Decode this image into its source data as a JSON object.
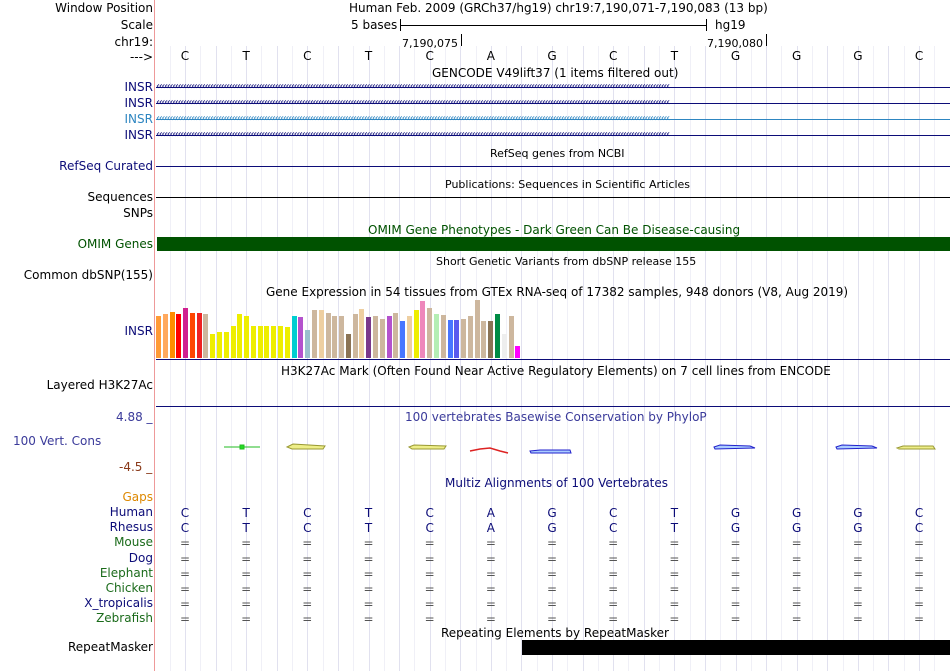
{
  "colors": {
    "gridline": "#e1e1ef",
    "divider": "#ee9999",
    "navy": "#0c0c78",
    "teal": "#2e86c1",
    "omim": "#005200",
    "gap": "#dd8800",
    "mammal": "#0c0c78",
    "nonmammal": "#1b6b1b",
    "phylop_top": "#3a3a9a",
    "phylop_bottom": "#8a3a1a",
    "repeat": "#000000"
  },
  "ruler": {
    "row_labels": [
      "Window Position",
      "Scale",
      "chr19:",
      "--->"
    ],
    "position_text": "Human Feb. 2009 (GRCh37/hg19)   chr19:7,190,071-7,190,083 (13 bp)",
    "scale_text": "5 bases",
    "assembly": "hg19",
    "tick_left": "7,190,075",
    "tick_right": "7,190,080"
  },
  "bases": [
    "C",
    "T",
    "C",
    "T",
    "C",
    "A",
    "G",
    "C",
    "T",
    "G",
    "G",
    "G",
    "C"
  ],
  "gencode": {
    "title": "GENCODE V49lift37 (1 items filtered out)",
    "items": [
      {
        "name": "INSR",
        "color": "#0c0c78"
      },
      {
        "name": "INSR",
        "color": "#0c0c78"
      },
      {
        "name": "INSR",
        "color": "#2e86c1"
      },
      {
        "name": "INSR",
        "color": "#0c0c78"
      }
    ]
  },
  "refseq": {
    "title": "RefSeq genes from NCBI",
    "label": "RefSeq Curated"
  },
  "pubs": {
    "title": "Publications: Sequences in Scientific Articles",
    "label": "Sequences",
    "label2": "SNPs"
  },
  "omim": {
    "title": "OMIM Gene Phenotypes - Dark Green Can Be Disease-causing",
    "label": "OMIM Genes"
  },
  "dbsnp": {
    "title": "Short Genetic Variants from dbSNP release 155",
    "label": "Common dbSNP(155)"
  },
  "gtex": {
    "title": "Gene Expression in 54 tissues from GTEx RNA-seq of 17382 samples, 948 donors (V8, Aug 2019)",
    "label": "INSR",
    "bars": [
      {
        "v": 0.72,
        "c": "#ff9a36"
      },
      {
        "v": 0.76,
        "c": "#ffa95e"
      },
      {
        "v": 0.8,
        "c": "#ff8c00"
      },
      {
        "v": 0.76,
        "c": "#ff0000"
      },
      {
        "v": 0.86,
        "c": "#d02090"
      },
      {
        "v": 0.78,
        "c": "#ff4500"
      },
      {
        "v": 0.78,
        "c": "#ee2222"
      },
      {
        "v": 0.76,
        "c": "#cdb79e"
      },
      {
        "v": 0.42,
        "c": "#eeee00"
      },
      {
        "v": 0.44,
        "c": "#eeee00"
      },
      {
        "v": 0.44,
        "c": "#eeee00"
      },
      {
        "v": 0.56,
        "c": "#eeee00"
      },
      {
        "v": 0.76,
        "c": "#eeee00"
      },
      {
        "v": 0.72,
        "c": "#eeee00"
      },
      {
        "v": 0.56,
        "c": "#eeee00"
      },
      {
        "v": 0.56,
        "c": "#eeee00"
      },
      {
        "v": 0.56,
        "c": "#eeee00"
      },
      {
        "v": 0.56,
        "c": "#eeee00"
      },
      {
        "v": 0.56,
        "c": "#eeee00"
      },
      {
        "v": 0.54,
        "c": "#eeee00"
      },
      {
        "v": 0.72,
        "c": "#00ced1"
      },
      {
        "v": 0.7,
        "c": "#b452cd"
      },
      {
        "v": 0.48,
        "c": "#9ac0cd"
      },
      {
        "v": 0.82,
        "c": "#cdb79e"
      },
      {
        "v": 0.82,
        "c": "#eecfa1"
      },
      {
        "v": 0.78,
        "c": "#cdb79e"
      },
      {
        "v": 0.72,
        "c": "#cdb79e"
      },
      {
        "v": 0.72,
        "c": "#cdb79e"
      },
      {
        "v": 0.42,
        "c": "#8b7355"
      },
      {
        "v": 0.76,
        "c": "#cdb79e"
      },
      {
        "v": 0.84,
        "c": "#eecfa1"
      },
      {
        "v": 0.7,
        "c": "#7a378b"
      },
      {
        "v": 0.72,
        "c": "#cdb79e"
      },
      {
        "v": 0.68,
        "c": "#cdb79e"
      },
      {
        "v": 0.72,
        "c": "#b452cd"
      },
      {
        "v": 0.78,
        "c": "#cdb79e"
      },
      {
        "v": 0.64,
        "c": "#4876ff"
      },
      {
        "v": 0.72,
        "c": "#eecfa1"
      },
      {
        "v": 0.82,
        "c": "#eeee00"
      },
      {
        "v": 0.98,
        "c": "#ee88bb"
      },
      {
        "v": 0.86,
        "c": "#cdb79e"
      },
      {
        "v": 0.76,
        "c": "#b4eeb4"
      },
      {
        "v": 0.74,
        "c": "#cdb79e"
      },
      {
        "v": 0.66,
        "c": "#4876ff"
      },
      {
        "v": 0.66,
        "c": "#5a5aee"
      },
      {
        "v": 0.68,
        "c": "#cdb79e"
      },
      {
        "v": 0.72,
        "c": "#cdb79e"
      },
      {
        "v": 1.0,
        "c": "#cdb79e"
      },
      {
        "v": 0.64,
        "c": "#cdb79e"
      },
      {
        "v": 0.64,
        "c": "#8b7355"
      },
      {
        "v": 0.76,
        "c": "#008b45"
      },
      {
        "v": 0.42,
        "c": "#eeeeee"
      },
      {
        "v": 0.72,
        "c": "#cdb79e"
      },
      {
        "v": 0.2,
        "c": "#ff00ff"
      }
    ]
  },
  "h3k27ac": {
    "title": "H3K27Ac Mark (Often Found Near Active Regulatory Elements) on 7 cell lines from ENCODE",
    "label": "Layered H3K27Ac"
  },
  "phylop": {
    "title": "100 vertebrates Basewise Conservation by PhyloP",
    "label": "100 Vert. Cons",
    "ymax": "4.88 _",
    "ymin": "-4.5 _"
  },
  "multiz": {
    "title": "Multiz Alignments of 100 Vertebrates",
    "gaps_label": "Gaps",
    "species": [
      {
        "name": "Human",
        "kind": "mammal",
        "seq": [
          "C",
          "T",
          "C",
          "T",
          "C",
          "A",
          "G",
          "C",
          "T",
          "G",
          "G",
          "G",
          "C"
        ]
      },
      {
        "name": "Rhesus",
        "kind": "mammal",
        "seq": [
          "C",
          "T",
          "C",
          "T",
          "C",
          "A",
          "G",
          "C",
          "T",
          "G",
          "G",
          "G",
          "C"
        ]
      },
      {
        "name": "Mouse",
        "kind": "nonmammal",
        "seq": [
          "=",
          "=",
          "=",
          "=",
          "=",
          "=",
          "=",
          "=",
          "=",
          "=",
          "=",
          "=",
          "="
        ]
      },
      {
        "name": "Dog",
        "kind": "mammal",
        "seq": [
          "=",
          "=",
          "=",
          "=",
          "=",
          "=",
          "=",
          "=",
          "=",
          "=",
          "=",
          "=",
          "="
        ]
      },
      {
        "name": "Elephant",
        "kind": "nonmammal",
        "seq": [
          "=",
          "=",
          "=",
          "=",
          "=",
          "=",
          "=",
          "=",
          "=",
          "=",
          "=",
          "=",
          "="
        ]
      },
      {
        "name": "Chicken",
        "kind": "nonmammal",
        "seq": [
          "=",
          "=",
          "=",
          "=",
          "=",
          "=",
          "=",
          "=",
          "=",
          "=",
          "=",
          "=",
          "="
        ]
      },
      {
        "name": "X_tropicalis",
        "kind": "mammal",
        "seq": [
          "=",
          "=",
          "=",
          "=",
          "=",
          "=",
          "=",
          "=",
          "=",
          "=",
          "=",
          "=",
          "="
        ]
      },
      {
        "name": "Zebrafish",
        "kind": "nonmammal",
        "seq": [
          "=",
          "=",
          "=",
          "=",
          "=",
          "=",
          "=",
          "=",
          "=",
          "=",
          "=",
          "=",
          "="
        ]
      }
    ]
  },
  "repeatmasker": {
    "title": "Repeating Elements by RepeatMasker",
    "label": "RepeatMasker"
  }
}
